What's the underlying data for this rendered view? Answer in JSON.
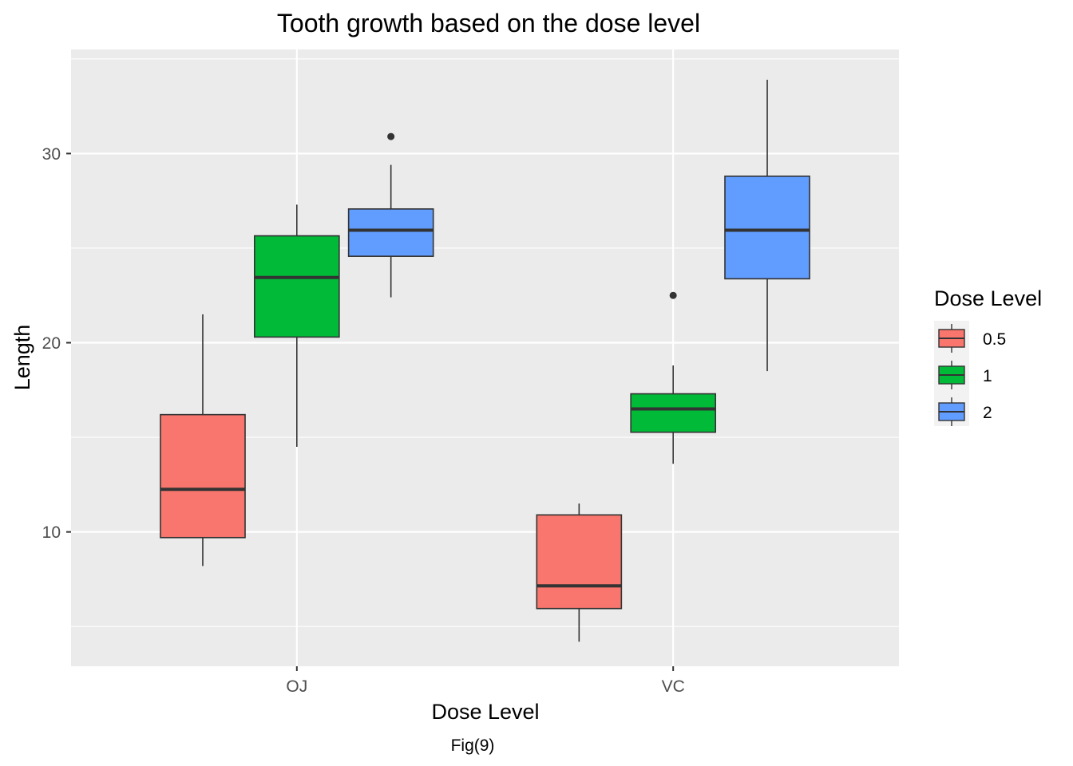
{
  "chart_data": {
    "type": "boxplot",
    "title": "Tooth growth based on the dose level",
    "xlabel": "Dose Level",
    "ylabel": "Length",
    "caption": "Fig(9)",
    "categories": [
      "OJ",
      "VC"
    ],
    "yticks": [
      10,
      20,
      30
    ],
    "ylim": [
      2.9,
      35.5
    ],
    "grid": true,
    "legend": {
      "title": "Dose Level",
      "position": "right",
      "entries": [
        {
          "label": "0.5",
          "color": "#F8766D"
        },
        {
          "label": "1",
          "color": "#00BA38"
        },
        {
          "label": "2",
          "color": "#619CFF"
        }
      ]
    },
    "series": [
      {
        "name": "0.5",
        "color": "#F8766D",
        "boxes": [
          {
            "category": "OJ",
            "lower_whisker": 8.2,
            "q1": 9.7,
            "median": 12.25,
            "q3": 16.2,
            "upper_whisker": 21.5,
            "outliers": []
          },
          {
            "category": "VC",
            "lower_whisker": 4.2,
            "q1": 5.95,
            "median": 7.15,
            "q3": 10.9,
            "upper_whisker": 11.5,
            "outliers": []
          }
        ]
      },
      {
        "name": "1",
        "color": "#00BA38",
        "boxes": [
          {
            "category": "OJ",
            "lower_whisker": 14.5,
            "q1": 20.3,
            "median": 23.45,
            "q3": 25.65,
            "upper_whisker": 27.3,
            "outliers": []
          },
          {
            "category": "VC",
            "lower_whisker": 13.6,
            "q1": 15.27,
            "median": 16.5,
            "q3": 17.3,
            "upper_whisker": 18.8,
            "outliers": [
              22.5
            ]
          }
        ]
      },
      {
        "name": "2",
        "color": "#619CFF",
        "boxes": [
          {
            "category": "OJ",
            "lower_whisker": 22.4,
            "q1": 24.57,
            "median": 25.95,
            "q3": 27.07,
            "upper_whisker": 29.4,
            "outliers": [
              30.9
            ]
          },
          {
            "category": "VC",
            "lower_whisker": 18.5,
            "q1": 23.38,
            "median": 25.95,
            "q3": 28.8,
            "upper_whisker": 33.9,
            "outliers": []
          }
        ]
      }
    ]
  }
}
